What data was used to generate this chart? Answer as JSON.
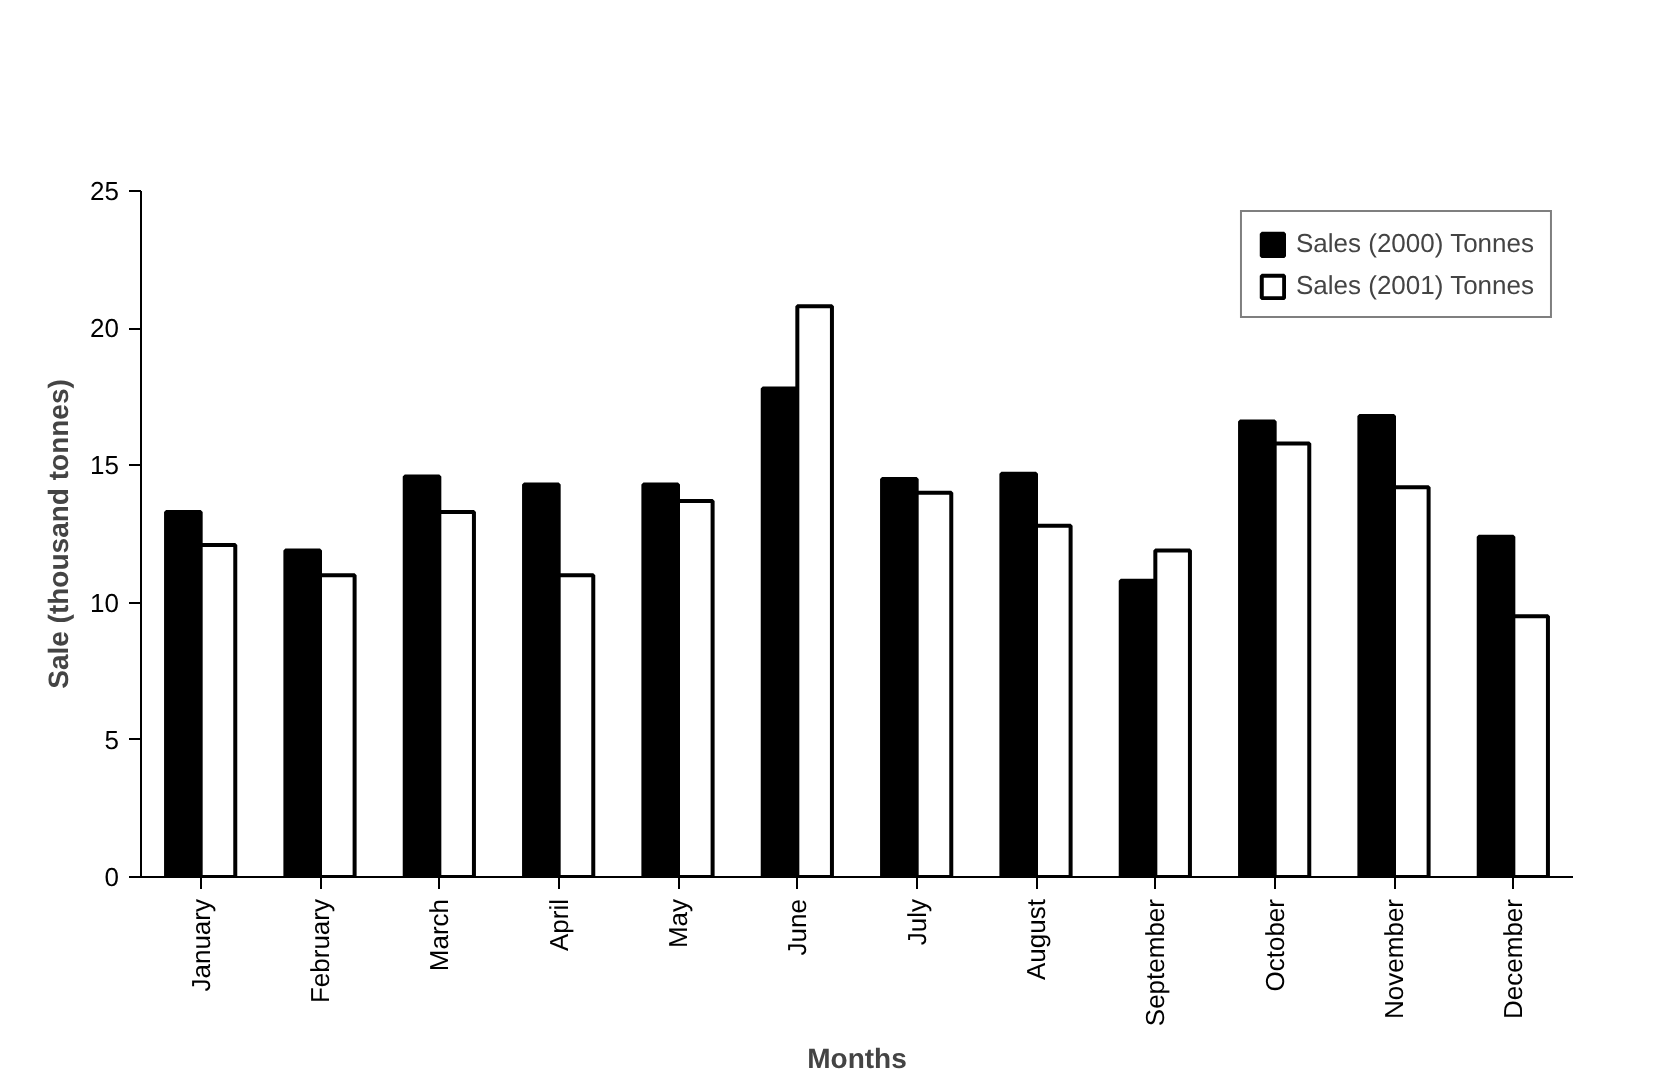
{
  "chart_data": {
    "type": "bar",
    "xlabel": "Months",
    "ylabel": "Sale (thousand tonnes)",
    "categories": [
      "January",
      "February",
      "March",
      "April",
      "May",
      "June",
      "July",
      "August",
      "September",
      "October",
      "November",
      "December"
    ],
    "series": [
      {
        "name": "Sales (2000) Tonnes",
        "color": "#000000",
        "values": [
          13.3,
          11.9,
          14.6,
          14.3,
          14.3,
          17.8,
          14.5,
          14.7,
          10.8,
          16.6,
          16.8,
          12.4
        ]
      },
      {
        "name": "Sales (2001) Tonnes",
        "color": "#ffffff",
        "values": [
          12.1,
          11.0,
          13.3,
          11.0,
          13.7,
          20.8,
          14.0,
          12.8,
          11.9,
          15.8,
          14.2,
          9.5
        ]
      }
    ],
    "ylim": [
      0,
      25
    ],
    "yticks": [
      0,
      5,
      10,
      15,
      20,
      25
    ],
    "grid": false,
    "legend": "top right"
  }
}
